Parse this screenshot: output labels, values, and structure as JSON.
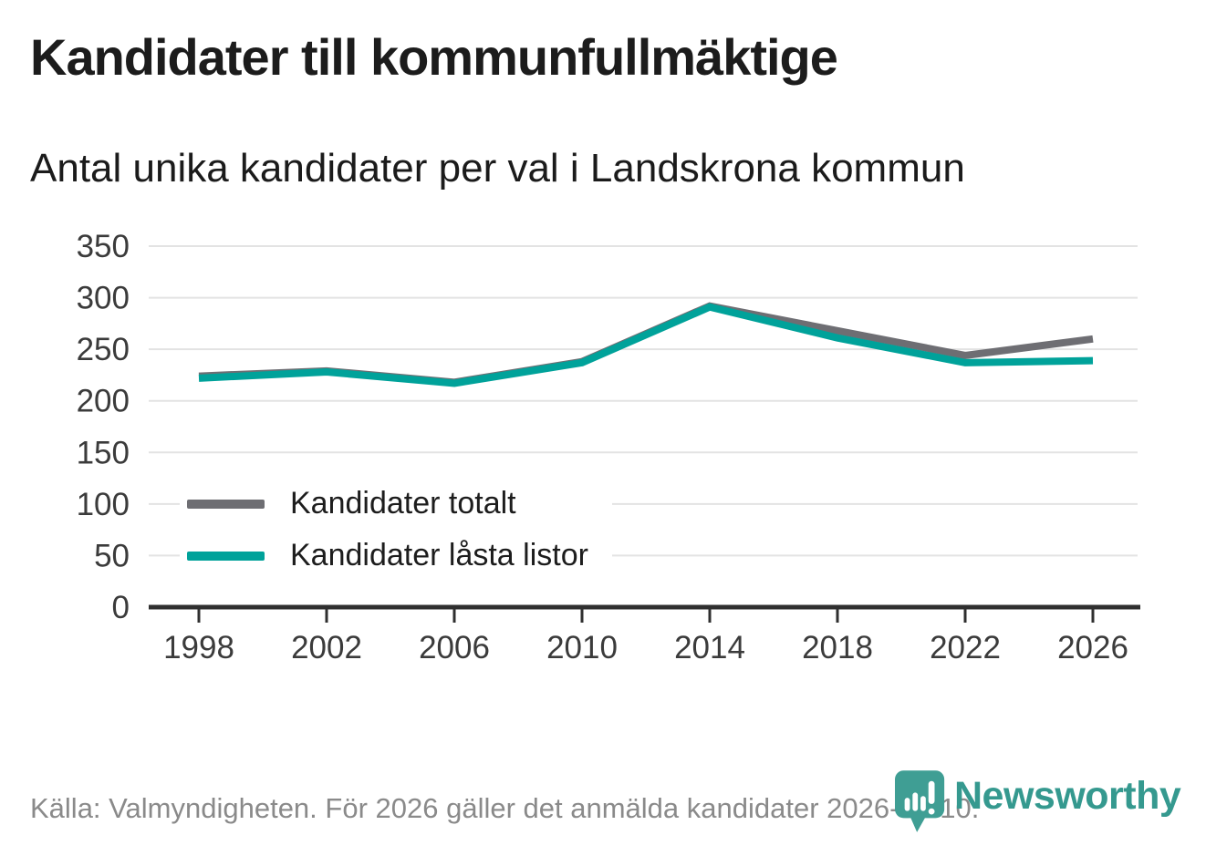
{
  "header": {
    "title": "Kandidater till kommunfullmäktige",
    "subtitle": "Antal unika kandidater per val i Landskrona kommun"
  },
  "chart_data": {
    "type": "line",
    "x": [
      1998,
      2002,
      2006,
      2010,
      2014,
      2018,
      2022,
      2026
    ],
    "series": [
      {
        "name": "Kandidater totalt",
        "color": "#6e6e73",
        "values": [
          224,
          229,
          218,
          238,
          292,
          268,
          244,
          260
        ]
      },
      {
        "name": "Kandidater låsta listor",
        "color": "#00a29a",
        "values": [
          222,
          228,
          217,
          237,
          291,
          261,
          237,
          239
        ]
      }
    ],
    "title": "Kandidater till kommunfullmäktige",
    "subtitle": "Antal unika kandidater per val i Landskrona kommun",
    "xlabel": "",
    "ylabel": "",
    "ylim": [
      0,
      350
    ],
    "y_ticks": [
      0,
      50,
      100,
      150,
      200,
      250,
      300,
      350
    ],
    "grid": "horizontal",
    "legend_position": "inside-left",
    "line_width": 8
  },
  "colors": {
    "grid": "#e3e3e3",
    "axis": "#2f2f2f",
    "tick": "#2f2f2f",
    "tick_label": "#3b3b3b",
    "title": "#1c1c1c",
    "footer_text": "#8a8a8a",
    "logo": "#35998f"
  },
  "footer": {
    "source": "Källa: Valmyndigheten. För 2026 gäller det anmälda kandidater 2026-04-10.",
    "logo_text": "Newsworthy"
  }
}
